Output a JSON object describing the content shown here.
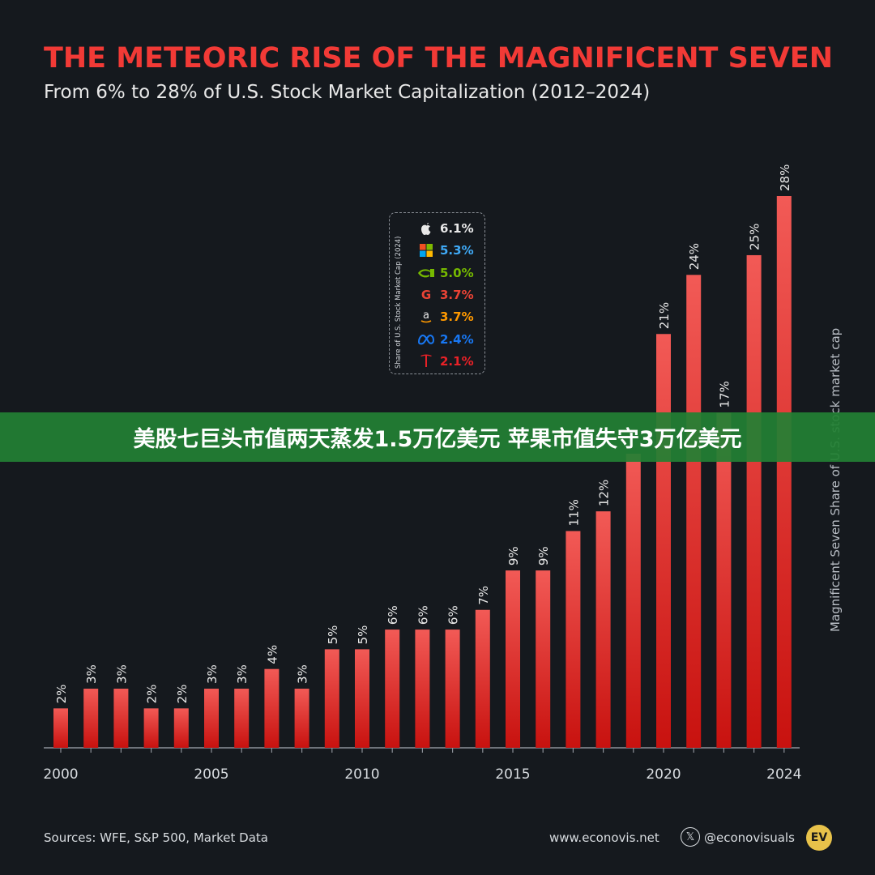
{
  "header": {
    "title": "THE METEORIC RISE OF THE MAGNIFICENT SEVEN",
    "subtitle": "From 6% to 28% of U.S. Stock Market Capitalization (2012–2024)"
  },
  "banner": {
    "text": "美股七巨头市值两天蒸发1.5万亿美元 苹果市值失守3万亿美元"
  },
  "legend": {
    "title": "Share of U.S. Stock Market Cap (2024)",
    "items": [
      {
        "icon": "apple-icon",
        "value": "6.1%",
        "color": "#e8e8e8"
      },
      {
        "icon": "microsoft-icon",
        "value": "5.3%",
        "color": "#3fa9f5"
      },
      {
        "icon": "nvidia-icon",
        "value": "5.0%",
        "color": "#76b900"
      },
      {
        "icon": "google-icon",
        "value": "3.7%",
        "color": "#ea4335"
      },
      {
        "icon": "amazon-icon",
        "value": "3.7%",
        "color": "#ff9900"
      },
      {
        "icon": "meta-icon",
        "value": "2.4%",
        "color": "#1877f2"
      },
      {
        "icon": "tesla-icon",
        "value": "2.1%",
        "color": "#e82127"
      }
    ]
  },
  "chart_data": {
    "type": "bar",
    "categories": [
      "2000",
      "2001",
      "2002",
      "2003",
      "2004",
      "2005",
      "2006",
      "2007",
      "2008",
      "2009",
      "2010",
      "2011",
      "2012",
      "2013",
      "2014",
      "2015",
      "2016",
      "2017",
      "2018",
      "2019",
      "2020",
      "2021",
      "2022",
      "2023",
      "2024"
    ],
    "values": [
      2,
      3,
      3,
      2,
      2,
      3,
      3,
      4,
      3,
      5,
      5,
      6,
      6,
      6,
      7,
      9,
      9,
      11,
      12,
      null,
      21,
      24,
      17,
      25,
      28
    ],
    "labels": [
      "2%",
      "3%",
      "3%",
      "2%",
      "2%",
      "3%",
      "3%",
      "4%",
      "3%",
      "5%",
      "5%",
      "6%",
      "6%",
      "6%",
      "7%",
      "9%",
      "9%",
      "11%",
      "12%",
      "",
      "21%",
      "24%",
      "17%",
      "25%",
      "28%"
    ],
    "x_tick_labels": [
      "2000",
      "2005",
      "2010",
      "2015",
      "2020",
      "2024"
    ],
    "ylabel": "Magnificent Seven Share of U.S. stock market cap",
    "ylim": [
      0,
      28
    ],
    "grid": false,
    "bar_color": "#e8231f"
  },
  "footer": {
    "sources": "Sources: WFE, S&P 500, Market Data",
    "website": "www.econovis.net",
    "x_glyph": "𝕏",
    "handle": "@econovisuals",
    "logo_text": "EV"
  }
}
